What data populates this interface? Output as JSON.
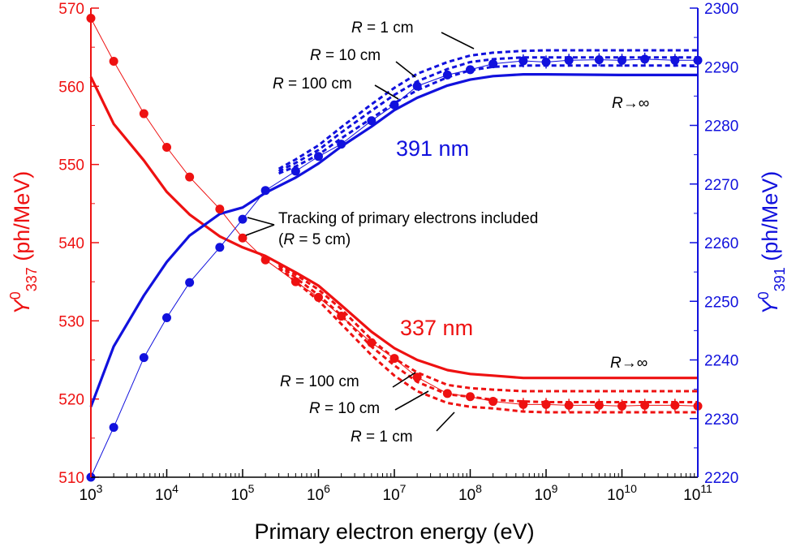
{
  "chart_data": {
    "type": "line",
    "xlabel": "Primary electron energy (eV)",
    "x_scale": "log",
    "xlim": [
      1000,
      100000000000
    ],
    "x_tick_exponents": [
      "3",
      "4",
      "5",
      "6",
      "7",
      "8",
      "9",
      "10",
      "11"
    ],
    "left_axis": {
      "label_main": "Y",
      "label_sup": "0",
      "label_sub": "337",
      "label_unit": " (ph/MeV)",
      "ylim": [
        510,
        570
      ],
      "ticks": [
        510,
        520,
        530,
        540,
        550,
        560,
        570
      ],
      "color": "#ee1111"
    },
    "right_axis": {
      "label_main": "Y",
      "label_sup": "0",
      "label_sub": "391",
      "label_unit": " (ph/MeV)",
      "ylim": [
        2220,
        2300
      ],
      "ticks": [
        2220,
        2230,
        2240,
        2250,
        2260,
        2270,
        2280,
        2290,
        2300
      ],
      "color": "#1111dd"
    },
    "series": [
      {
        "name": "337 nm R→∞",
        "axis": "left",
        "style": "solid",
        "color": "#ee1111",
        "x": [
          1000,
          2000,
          5000,
          10000,
          20000,
          50000,
          100000,
          200000,
          500000,
          1000000,
          2000000,
          5000000,
          10000000,
          20000000,
          50000000,
          100000000,
          200000000,
          500000000,
          1000000000,
          10000000000,
          100000000000
        ],
        "y": [
          561.2,
          555.2,
          550.5,
          546.5,
          543.6,
          540.8,
          539.4,
          538.3,
          536.2,
          534.5,
          532.0,
          528.6,
          526.5,
          525.0,
          523.7,
          523.2,
          523.0,
          522.7,
          522.7,
          522.7,
          522.7
        ]
      },
      {
        "name": "337 nm R = 100 cm",
        "axis": "left",
        "style": "dotted",
        "color": "#ee1111",
        "x": [
          300000,
          500000,
          1000000,
          2000000,
          5000000,
          10000000,
          20000000,
          50000000,
          100000000,
          200000000,
          500000000,
          1000000000,
          10000000000,
          100000000000
        ],
        "y": [
          537.3,
          535.9,
          534.0,
          531.5,
          527.6,
          525.2,
          523.4,
          521.8,
          521.4,
          521.2,
          521.0,
          521.0,
          521.0,
          521.0
        ]
      },
      {
        "name": "337 nm R = 10 cm",
        "axis": "left",
        "style": "dotted",
        "color": "#ee1111",
        "x": [
          300000,
          500000,
          1000000,
          2000000,
          5000000,
          10000000,
          20000000,
          50000000,
          100000000,
          200000000,
          500000000,
          1000000000,
          10000000000,
          100000000000
        ],
        "y": [
          537.1,
          535.5,
          533.3,
          530.7,
          526.7,
          524.3,
          522.2,
          520.6,
          520.3,
          519.9,
          519.7,
          519.6,
          519.6,
          519.6
        ]
      },
      {
        "name": "337 nm R = 1 cm",
        "axis": "left",
        "style": "dotted",
        "color": "#ee1111",
        "x": [
          300000,
          500000,
          1000000,
          2000000,
          5000000,
          10000000,
          20000000,
          50000000,
          100000000,
          200000000,
          500000000,
          1000000000,
          10000000000,
          100000000000
        ],
        "y": [
          536.8,
          535.0,
          532.6,
          529.6,
          525.6,
          523.0,
          521.0,
          519.5,
          519.0,
          518.8,
          518.4,
          518.3,
          518.3,
          518.3
        ]
      },
      {
        "name": "337 nm Tracking of primary electrons included (R = 5 cm)",
        "axis": "left",
        "style": "markers",
        "color": "#ee1111",
        "x": [
          1000,
          2000,
          5000,
          10000,
          20000,
          50000,
          100000,
          200000,
          500000,
          1000000,
          2000000,
          5000000,
          10000000,
          20000000,
          50000000,
          100000000,
          200000000,
          500000000,
          1000000000,
          2000000000,
          5000000000,
          10000000000,
          20000000000,
          50000000000,
          100000000000
        ],
        "y": [
          568.7,
          563.2,
          556.5,
          552.2,
          548.4,
          544.3,
          540.6,
          537.8,
          535.0,
          533.0,
          530.6,
          527.2,
          525.2,
          522.8,
          520.7,
          520.3,
          519.7,
          519.3,
          519.3,
          519.2,
          519.2,
          519.1,
          519.2,
          519.2,
          519.1
        ]
      },
      {
        "name": "391 nm R→∞",
        "axis": "right",
        "style": "solid",
        "color": "#1111dd",
        "x": [
          1000,
          2000,
          5000,
          10000,
          20000,
          50000,
          100000,
          200000,
          500000,
          1000000,
          2000000,
          5000000,
          10000000,
          20000000,
          50000000,
          100000000,
          200000000,
          500000000,
          1000000000,
          10000000000,
          100000000000
        ],
        "y": [
          2232.0,
          2242.3,
          2251.0,
          2256.7,
          2261.2,
          2264.9,
          2266.0,
          2268.5,
          2271.1,
          2273.5,
          2276.4,
          2279.8,
          2282.6,
          2284.7,
          2286.8,
          2287.8,
          2288.4,
          2288.7,
          2288.7,
          2288.6,
          2288.6
        ]
      },
      {
        "name": "391 nm R = 100 cm",
        "axis": "right",
        "style": "dotted",
        "color": "#1111dd",
        "x": [
          300000,
          500000,
          1000000,
          2000000,
          5000000,
          10000000,
          20000000,
          50000000,
          100000000,
          200000000,
          500000000,
          1000000000,
          10000000000,
          100000000000
        ],
        "y": [
          2271.8,
          2273.0,
          2275.0,
          2277.8,
          2281.2,
          2283.8,
          2286.0,
          2288.2,
          2289.4,
          2290.0,
          2290.2,
          2290.2,
          2290.2,
          2290.2
        ]
      },
      {
        "name": "391 nm R = 10 cm",
        "axis": "right",
        "style": "dotted",
        "color": "#1111dd",
        "x": [
          300000,
          500000,
          1000000,
          2000000,
          5000000,
          10000000,
          20000000,
          50000000,
          100000000,
          200000000,
          500000000,
          1000000000,
          10000000000,
          100000000000
        ],
        "y": [
          2272.2,
          2273.6,
          2275.8,
          2278.8,
          2282.5,
          2285.2,
          2287.5,
          2289.6,
          2290.8,
          2291.3,
          2291.6,
          2291.6,
          2291.6,
          2291.6
        ]
      },
      {
        "name": "391 nm R = 1 cm",
        "axis": "right",
        "style": "dotted",
        "color": "#1111dd",
        "x": [
          300000,
          500000,
          1000000,
          2000000,
          5000000,
          10000000,
          20000000,
          50000000,
          100000000,
          200000000,
          500000000,
          1000000000,
          10000000000,
          100000000000
        ],
        "y": [
          2272.6,
          2274.2,
          2276.6,
          2279.7,
          2283.6,
          2286.4,
          2288.8,
          2290.8,
          2291.9,
          2292.4,
          2292.7,
          2292.8,
          2292.8,
          2292.8
        ]
      },
      {
        "name": "391 nm Tracking of primary electrons included (R = 5 cm)",
        "axis": "right",
        "style": "markers",
        "color": "#1111dd",
        "x": [
          1000,
          2000,
          5000,
          10000,
          20000,
          50000,
          100000,
          200000,
          500000,
          1000000,
          2000000,
          5000000,
          10000000,
          20000000,
          50000000,
          100000000,
          200000000,
          500000000,
          1000000000,
          2000000000,
          5000000000,
          10000000000,
          20000000000,
          50000000000,
          100000000000
        ],
        "y": [
          2220.0,
          2228.5,
          2240.4,
          2247.2,
          2253.2,
          2259.2,
          2264.0,
          2268.9,
          2272.2,
          2274.7,
          2276.8,
          2280.8,
          2283.5,
          2286.7,
          2288.6,
          2289.5,
          2290.5,
          2291.0,
          2290.8,
          2291.1,
          2291.2,
          2291.1,
          2291.3,
          2291.1,
          2291.1
        ]
      }
    ],
    "annotations": {
      "label_391": "391 nm",
      "label_337": "337 nm",
      "blue_r1": "R = 1 cm",
      "blue_r10": "R = 10 cm",
      "blue_r100": "R = 100 cm",
      "blue_rinf": "R→∞",
      "red_r100": "R = 100 cm",
      "red_r10": "R = 10 cm",
      "red_r1": "R = 1 cm",
      "red_rinf": "R→∞",
      "tracking_line1": "Tracking of primary electrons included",
      "tracking_line2": "(R = 5 cm)"
    }
  }
}
